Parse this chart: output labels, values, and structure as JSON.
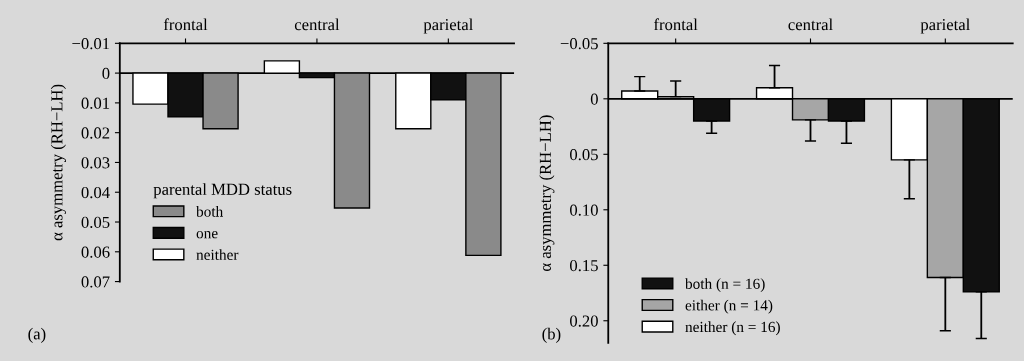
{
  "chart_data": [
    {
      "type": "bar",
      "categories": [
        "frontal",
        "central",
        "parietal"
      ],
      "ylabel": "α asymmetry (RH−LH)",
      "legend_title": "parental MDD status",
      "legend": "bottom left",
      "annotations": [
        "(a)"
      ],
      "series": [
        {
          "name": "neither",
          "color": "#ffffff",
          "values": [
            0.0104,
            -0.0041,
            0.0187
          ]
        },
        {
          "name": "one",
          "color": "#111111",
          "values": [
            0.0147,
            0.0015,
            0.009
          ]
        },
        {
          "name": "both",
          "color": "#8a8a8a",
          "values": [
            0.0187,
            0.0453,
            0.0612
          ]
        }
      ],
      "ylim": [
        0.07,
        -0.01
      ],
      "yticks": [
        {
          "value": -0.01,
          "label": "−0.01"
        },
        0,
        0.01,
        0.02,
        0.03,
        0.04,
        0.05,
        0.06,
        0.07
      ],
      "ref_lines": [
        {
          "axis": "y",
          "value": 0,
          "label": null
        }
      ]
    },
    {
      "type": "bar",
      "categories": [
        "frontal",
        "central",
        "parietal"
      ],
      "ylabel": "α asymmetry (RH−LH)",
      "legend": "bottom left",
      "annotations": [
        "(b)"
      ],
      "series": [
        {
          "name": "neither (n = 16)",
          "color": "#ffffff",
          "values": [
            -0.007,
            -0.01,
            0.055
          ],
          "errors": [
            [
              -0.02,
              -0.007
            ],
            [
              -0.03,
              -0.01
            ],
            [
              0.055,
              0.09
            ]
          ]
        },
        {
          "name": "either (n = 14)",
          "color": "#a6a6a6",
          "values": [
            -0.002,
            0.019,
            0.161
          ],
          "errors": [
            [
              -0.016,
              -0.002
            ],
            [
              0.019,
              0.038
            ],
            [
              0.161,
              0.209
            ]
          ]
        },
        {
          "name": "both (n = 16)",
          "color": "#111111",
          "values": [
            0.02,
            0.02,
            0.174
          ],
          "errors": [
            [
              0.02,
              0.031
            ],
            [
              0.02,
              0.04
            ],
            [
              0.174,
              0.216
            ]
          ]
        }
      ],
      "ylim": [
        0.22,
        -0.05
      ],
      "yticks": [
        {
          "value": -0.05,
          "label": "−0.05"
        },
        0,
        0.05,
        {
          "value": 0.1,
          "label": "0.10"
        },
        0.15,
        {
          "value": 0.2,
          "label": "0.20"
        }
      ],
      "ref_lines": [
        {
          "axis": "y",
          "value": 0,
          "label": null
        }
      ]
    }
  ]
}
